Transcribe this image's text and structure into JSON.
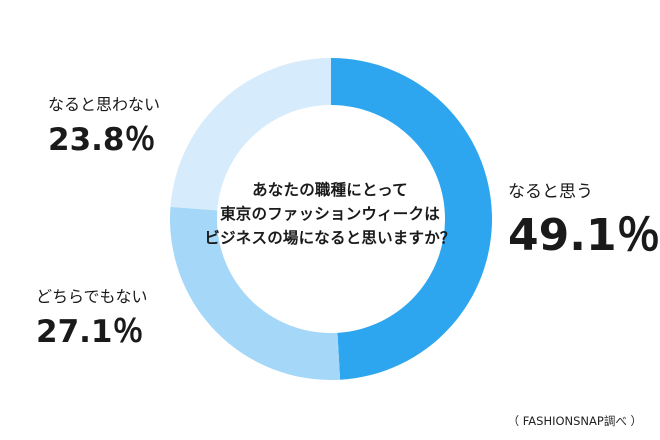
{
  "chart_data": {
    "type": "pie",
    "donut": true,
    "title_lines": [
      "あなたの職種にとって",
      "東京のファッションウィークは",
      "ビジネスの場になると思いますか？"
    ],
    "series": [
      {
        "name": "なると思う",
        "value": 49.1,
        "label": "49.1％",
        "color": "#2ea6ef"
      },
      {
        "name": "どちらでもない",
        "value": 27.1,
        "label": "27.1％",
        "color": "#a5d7f8"
      },
      {
        "name": "なると思わない",
        "value": 23.8,
        "label": "23.8％",
        "color": "#d6ebfb"
      }
    ],
    "source": "（ FASHIONSNAP調べ ）"
  }
}
